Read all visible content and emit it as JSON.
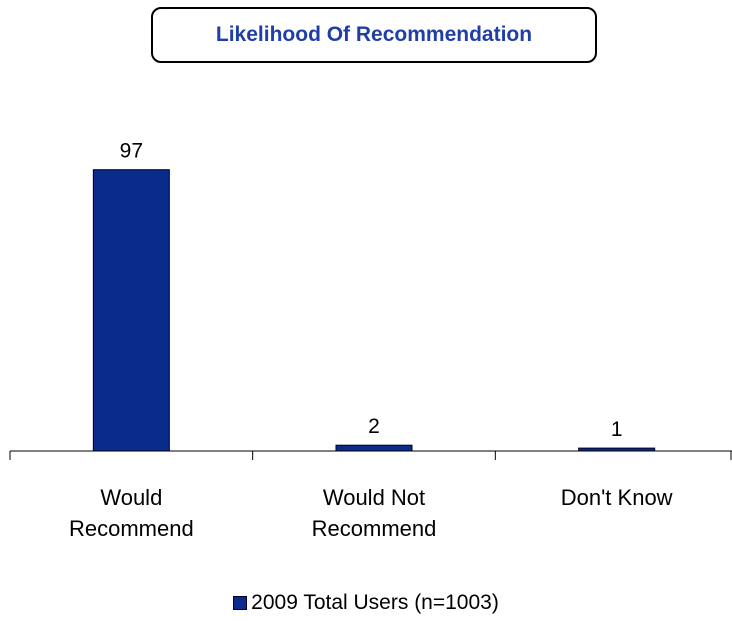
{
  "chart_data": {
    "type": "bar",
    "title": "Likelihood Of Recommendation",
    "categories": [
      [
        "Would",
        "Recommend"
      ],
      [
        "Would Not",
        "Recommend"
      ],
      [
        "Don't Know"
      ]
    ],
    "series": [
      {
        "name": "2009 Total Users (n=1003)",
        "values": [
          97,
          2,
          1
        ]
      }
    ],
    "ylim": [
      0,
      100
    ],
    "grid": false,
    "legend": "bottom-center",
    "bar_color": "#0a2a8c"
  }
}
